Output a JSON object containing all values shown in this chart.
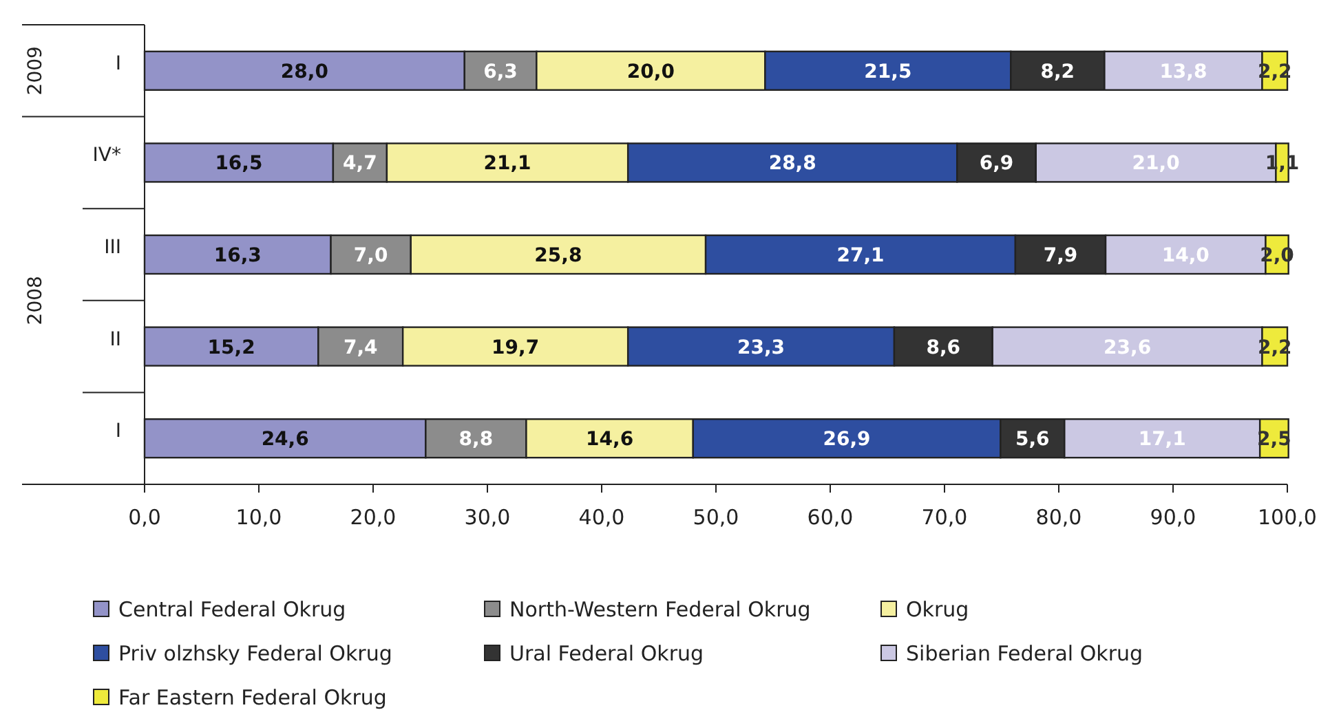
{
  "chart_data": {
    "type": "bar",
    "orientation": "horizontal",
    "stacked": true,
    "legend": "bottom",
    "grid": false,
    "categories": [
      "I",
      "IV*",
      "III",
      "II",
      "I"
    ],
    "annotations": [
      "2009",
      "2008"
    ],
    "xlim": [
      0,
      100
    ],
    "xticks": [
      {
        "value": 0,
        "label": "0,0"
      },
      {
        "value": 10,
        "label": "10,0"
      },
      {
        "value": 20,
        "label": "20,0"
      },
      {
        "value": 30,
        "label": "30,0"
      },
      {
        "value": 40,
        "label": "40,0"
      },
      {
        "value": 50,
        "label": "50,0"
      },
      {
        "value": 60,
        "label": "60,0"
      },
      {
        "value": 70,
        "label": "70,0"
      },
      {
        "value": 80,
        "label": "80,0"
      },
      {
        "value": 90,
        "label": "90,0"
      },
      {
        "value": 100,
        "label": "100,0"
      }
    ],
    "series": [
      {
        "name": "Central Federal Okrug",
        "color": "#9393c8",
        "values": [
          28.0,
          16.5,
          16.3,
          15.2,
          24.6
        ],
        "value_labels": [
          "28,0",
          "16,5",
          "16,3",
          "15,2",
          "24,6"
        ]
      },
      {
        "name": "North-Western Federal Okrug",
        "color": "#8c8c8c",
        "values": [
          6.3,
          4.7,
          7.0,
          7.4,
          8.8
        ],
        "value_labels": [
          "6,3",
          "4,7",
          "7,0",
          "7,4",
          "8,8"
        ]
      },
      {
        "name": "Okrug",
        "color": "#f5f0a0",
        "values": [
          20.0,
          21.1,
          25.8,
          19.7,
          14.6
        ],
        "value_labels": [
          "20,0",
          "21,1",
          "25,8",
          "19,7",
          "14,6"
        ]
      },
      {
        "name": "Priv olzhsky Federal Okrug",
        "color": "#2e4ea0",
        "values": [
          21.5,
          28.8,
          27.1,
          23.3,
          26.9
        ],
        "value_labels": [
          "21,5",
          "28,8",
          "27,1",
          "23,3",
          "26,9"
        ]
      },
      {
        "name": "Ural Federal Okrug",
        "color": "#333333",
        "values": [
          8.2,
          6.9,
          7.9,
          8.6,
          5.6
        ],
        "value_labels": [
          "8,2",
          "6,9",
          "7,9",
          "8,6",
          "5,6"
        ]
      },
      {
        "name": "Siberian Federal Okrug",
        "color": "#cbc8e3",
        "values": [
          13.8,
          21.0,
          14.0,
          23.6,
          17.1
        ],
        "value_labels": [
          "13,8",
          "21,0",
          "14,0",
          "23,6",
          "17,1"
        ]
      },
      {
        "name": "Far Eastern Federal Okrug",
        "color": "#eeea3c",
        "values": [
          2.2,
          1.1,
          2.0,
          2.2,
          2.5
        ],
        "value_labels": [
          "2,2",
          "1,1",
          "2,0",
          "2,2",
          "2,5"
        ]
      }
    ]
  }
}
